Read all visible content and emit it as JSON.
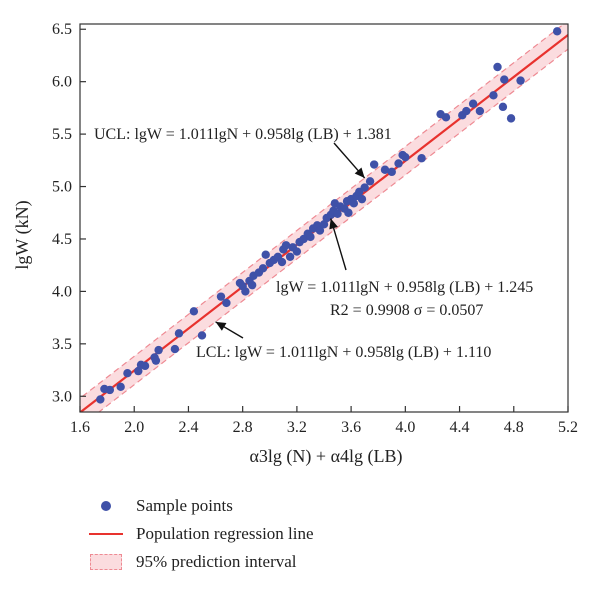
{
  "chart_data": {
    "type": "scatter",
    "xlabel": "α3lg (N) + α4lg (LB)",
    "ylabel": "lgW (kN)",
    "xlim": [
      1.6,
      5.2
    ],
    "ylim": [
      2.85,
      6.55
    ],
    "x_ticks": [
      "1.6",
      "2.0",
      "2.4",
      "2.8",
      "3.2",
      "3.6",
      "4.0",
      "4.4",
      "4.8",
      "5.2"
    ],
    "y_ticks": [
      "3.0",
      "3.5",
      "4.0",
      "4.5",
      "5.0",
      "5.5",
      "6.0",
      "6.5"
    ],
    "grid": false,
    "legend_position": "bottom-left, below plot",
    "legend": {
      "points": "Sample points",
      "line": "Population regression line",
      "band": "95% prediction interval"
    },
    "regression": {
      "slope": 1.0,
      "intercept": 1.245
    },
    "ucl_offset": 0.136,
    "lcl_offset": -0.135,
    "annotations": {
      "ucl": "UCL: lgW = 1.011lgN + 0.958lg (LB) + 1.381",
      "mid": "lgW = 1.011lgN + 0.958lg (LB) + 1.245",
      "stats": "R2 = 0.9908 σ = 0.0507",
      "lcl": "LCL: lgW = 1.011lgN + 0.958lg (LB) + 1.110"
    },
    "colors": {
      "points": "#3f51a8",
      "line": "#e8322e",
      "band_fill": "#fbdcdf",
      "band_edge": "#ee8a93"
    },
    "points": [
      [
        1.75,
        2.97
      ],
      [
        1.78,
        3.07
      ],
      [
        1.82,
        3.06
      ],
      [
        1.9,
        3.09
      ],
      [
        1.95,
        3.22
      ],
      [
        2.03,
        3.24
      ],
      [
        2.05,
        3.3
      ],
      [
        2.08,
        3.29
      ],
      [
        2.15,
        3.37
      ],
      [
        2.16,
        3.34
      ],
      [
        2.18,
        3.44
      ],
      [
        2.3,
        3.45
      ],
      [
        2.33,
        3.6
      ],
      [
        2.44,
        3.81
      ],
      [
        2.5,
        3.58
      ],
      [
        2.64,
        3.95
      ],
      [
        2.68,
        3.89
      ],
      [
        2.78,
        4.08
      ],
      [
        2.8,
        4.05
      ],
      [
        2.82,
        4.0
      ],
      [
        2.85,
        4.1
      ],
      [
        2.87,
        4.06
      ],
      [
        2.88,
        4.15
      ],
      [
        2.92,
        4.18
      ],
      [
        2.95,
        4.22
      ],
      [
        2.97,
        4.35
      ],
      [
        3.0,
        4.27
      ],
      [
        3.03,
        4.3
      ],
      [
        3.06,
        4.33
      ],
      [
        3.09,
        4.28
      ],
      [
        3.1,
        4.4
      ],
      [
        3.12,
        4.44
      ],
      [
        3.15,
        4.33
      ],
      [
        3.17,
        4.42
      ],
      [
        3.2,
        4.38
      ],
      [
        3.22,
        4.47
      ],
      [
        3.25,
        4.5
      ],
      [
        3.28,
        4.55
      ],
      [
        3.3,
        4.52
      ],
      [
        3.32,
        4.6
      ],
      [
        3.35,
        4.63
      ],
      [
        3.37,
        4.58
      ],
      [
        3.4,
        4.64
      ],
      [
        3.42,
        4.7
      ],
      [
        3.45,
        4.73
      ],
      [
        3.47,
        4.77
      ],
      [
        3.48,
        4.84
      ],
      [
        3.5,
        4.74
      ],
      [
        3.52,
        4.81
      ],
      [
        3.55,
        4.79
      ],
      [
        3.57,
        4.86
      ],
      [
        3.58,
        4.75
      ],
      [
        3.6,
        4.88
      ],
      [
        3.62,
        4.84
      ],
      [
        3.64,
        4.91
      ],
      [
        3.66,
        4.95
      ],
      [
        3.68,
        4.88
      ],
      [
        3.7,
        4.99
      ],
      [
        3.74,
        5.05
      ],
      [
        3.77,
        5.21
      ],
      [
        3.85,
        5.16
      ],
      [
        3.9,
        5.14
      ],
      [
        3.95,
        5.22
      ],
      [
        3.98,
        5.3
      ],
      [
        4.0,
        5.28
      ],
      [
        4.12,
        5.27
      ],
      [
        4.26,
        5.69
      ],
      [
        4.3,
        5.66
      ],
      [
        4.42,
        5.68
      ],
      [
        4.45,
        5.72
      ],
      [
        4.5,
        5.79
      ],
      [
        4.55,
        5.72
      ],
      [
        4.65,
        5.87
      ],
      [
        4.68,
        6.14
      ],
      [
        4.72,
        5.76
      ],
      [
        4.73,
        6.02
      ],
      [
        4.78,
        5.65
      ],
      [
        4.85,
        6.01
      ],
      [
        5.12,
        6.48
      ]
    ]
  }
}
